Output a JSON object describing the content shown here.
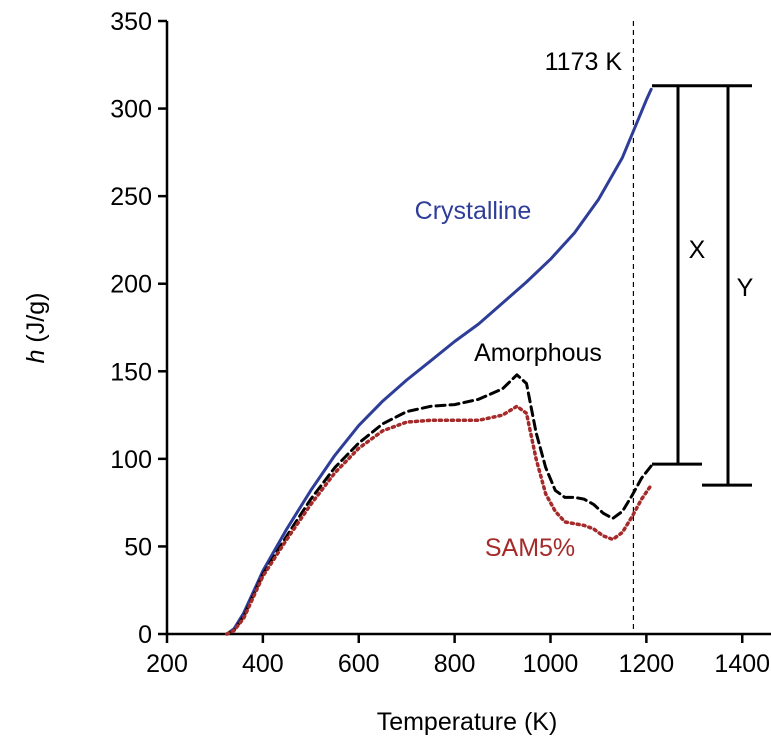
{
  "chart_data": {
    "type": "line",
    "title": "",
    "xlabel": "Temperature (K)",
    "ylabel_italic": "h",
    "ylabel_rest": " (J/g)",
    "xlim": [
      200,
      1460
    ],
    "ylim": [
      0,
      350
    ],
    "xticks": [
      200,
      400,
      600,
      800,
      1000,
      1200,
      1400
    ],
    "yticks": [
      0,
      50,
      100,
      150,
      200,
      250,
      300,
      350
    ],
    "grid": false,
    "legend": "none",
    "series": [
      {
        "name": "Crystalline",
        "color": "#2e3d98",
        "style": "solid",
        "points": [
          [
            325,
            0
          ],
          [
            340,
            3
          ],
          [
            360,
            12
          ],
          [
            380,
            24
          ],
          [
            400,
            36
          ],
          [
            450,
            60
          ],
          [
            500,
            82
          ],
          [
            550,
            102
          ],
          [
            600,
            119
          ],
          [
            650,
            133
          ],
          [
            700,
            145
          ],
          [
            750,
            156
          ],
          [
            800,
            167
          ],
          [
            850,
            177
          ],
          [
            900,
            189
          ],
          [
            950,
            201
          ],
          [
            1000,
            214
          ],
          [
            1050,
            229
          ],
          [
            1100,
            248
          ],
          [
            1150,
            272
          ],
          [
            1200,
            305
          ],
          [
            1210,
            311
          ]
        ]
      },
      {
        "name": "Amorphous",
        "color": "#000000",
        "style": "dashed",
        "points": [
          [
            325,
            0
          ],
          [
            340,
            2
          ],
          [
            360,
            10
          ],
          [
            380,
            22
          ],
          [
            400,
            34
          ],
          [
            450,
            56
          ],
          [
            500,
            77
          ],
          [
            550,
            95
          ],
          [
            600,
            109
          ],
          [
            650,
            120
          ],
          [
            700,
            127
          ],
          [
            750,
            130
          ],
          [
            800,
            131
          ],
          [
            850,
            134
          ],
          [
            900,
            140
          ],
          [
            930,
            148
          ],
          [
            950,
            143
          ],
          [
            970,
            115
          ],
          [
            990,
            95
          ],
          [
            1010,
            82
          ],
          [
            1030,
            78
          ],
          [
            1050,
            78
          ],
          [
            1070,
            77
          ],
          [
            1090,
            74
          ],
          [
            1110,
            69
          ],
          [
            1130,
            66
          ],
          [
            1150,
            70
          ],
          [
            1170,
            79
          ],
          [
            1190,
            89
          ],
          [
            1210,
            96
          ]
        ]
      },
      {
        "name": "SAM5%",
        "color": "#a52a2a",
        "style": "dotted",
        "points": [
          [
            325,
            0
          ],
          [
            340,
            2
          ],
          [
            360,
            9
          ],
          [
            380,
            21
          ],
          [
            400,
            33
          ],
          [
            450,
            54
          ],
          [
            500,
            74
          ],
          [
            550,
            92
          ],
          [
            600,
            106
          ],
          [
            650,
            116
          ],
          [
            700,
            121
          ],
          [
            750,
            122
          ],
          [
            800,
            122
          ],
          [
            850,
            122
          ],
          [
            900,
            125
          ],
          [
            930,
            130
          ],
          [
            950,
            126
          ],
          [
            970,
            100
          ],
          [
            990,
            80
          ],
          [
            1010,
            70
          ],
          [
            1030,
            64
          ],
          [
            1050,
            63
          ],
          [
            1070,
            62
          ],
          [
            1090,
            60
          ],
          [
            1110,
            56
          ],
          [
            1130,
            54
          ],
          [
            1150,
            58
          ],
          [
            1170,
            67
          ],
          [
            1190,
            77
          ],
          [
            1210,
            85
          ]
        ]
      }
    ],
    "vline": {
      "x": 1173,
      "label": "1173 K",
      "style": "dashed"
    },
    "annotations": {
      "crystalline_label": "Crystalline",
      "amorphous_label": "Amorphous",
      "sam_label": "SAM5%",
      "x_label": "X",
      "y_label": "Y"
    },
    "brackets": [
      {
        "name": "X",
        "from": 97,
        "to": 313
      },
      {
        "name": "Y",
        "from": 85,
        "to": 313
      }
    ],
    "colors": {
      "crystalline": "#2e3d98",
      "amorphous": "#000000",
      "sam": "#a52a2a"
    }
  }
}
